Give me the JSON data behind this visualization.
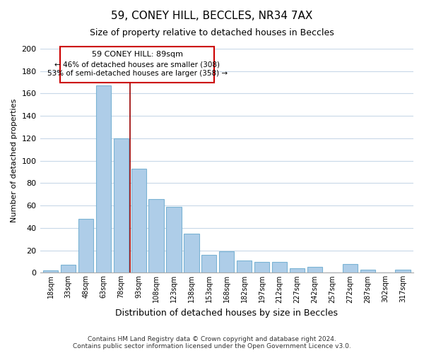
{
  "title1": "59, CONEY HILL, BECCLES, NR34 7AX",
  "title2": "Size of property relative to detached houses in Beccles",
  "xlabel": "Distribution of detached houses by size in Beccles",
  "ylabel": "Number of detached properties",
  "bar_labels": [
    "18sqm",
    "33sqm",
    "48sqm",
    "63sqm",
    "78sqm",
    "93sqm",
    "108sqm",
    "123sqm",
    "138sqm",
    "153sqm",
    "168sqm",
    "182sqm",
    "197sqm",
    "212sqm",
    "227sqm",
    "242sqm",
    "257sqm",
    "272sqm",
    "287sqm",
    "302sqm",
    "317sqm"
  ],
  "bar_values": [
    2,
    7,
    48,
    167,
    120,
    93,
    66,
    59,
    35,
    16,
    19,
    11,
    10,
    10,
    4,
    5,
    0,
    8,
    3,
    0,
    3
  ],
  "bar_color": "#aecde8",
  "bar_edge_color": "#7ab3d4",
  "vline_x": 4.5,
  "vline_color": "#990000",
  "annotation_title": "59 CONEY HILL: 89sqm",
  "annotation_line1": "← 46% of detached houses are smaller (308)",
  "annotation_line2": "53% of semi-detached houses are larger (358) →",
  "annotation_box_color": "#ffffff",
  "annotation_box_edge": "#cc0000",
  "ylim": [
    0,
    200
  ],
  "yticks": [
    0,
    20,
    40,
    60,
    80,
    100,
    120,
    140,
    160,
    180,
    200
  ],
  "footer1": "Contains HM Land Registry data © Crown copyright and database right 2024.",
  "footer2": "Contains public sector information licensed under the Open Government Licence v3.0.",
  "bg_color": "#ffffff",
  "grid_color": "#c8d8e8"
}
